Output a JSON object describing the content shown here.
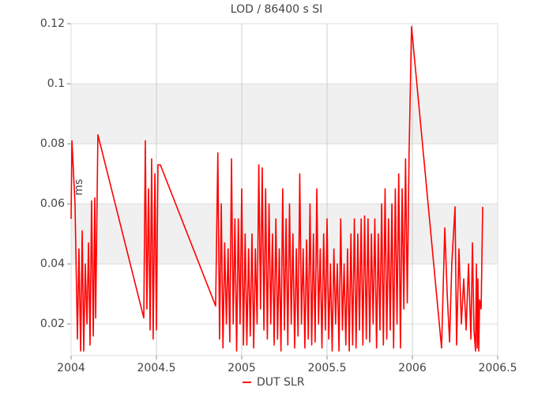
{
  "chart_data": {
    "type": "line",
    "title": "LOD / 86400 s SI",
    "y_label": "ms",
    "xlim": [
      2004,
      2006.5
    ],
    "xticks": [
      2004,
      2004.5,
      2005,
      2005.5,
      2006,
      2006.5
    ],
    "ylim": [
      0.0095,
      0.12
    ],
    "yticks": [
      0.02,
      0.04,
      0.06,
      0.08,
      0.1,
      0.12
    ],
    "grid": true,
    "legend": "bottom",
    "x": [
      2004.0,
      2004.005,
      2004.023,
      2004.037,
      2004.046,
      2004.056,
      2004.065,
      2004.074,
      2004.083,
      2004.093,
      2004.102,
      2004.111,
      2004.12,
      2004.13,
      2004.139,
      2004.144,
      2004.157,
      2004.426,
      2004.435,
      2004.444,
      2004.454,
      2004.463,
      2004.472,
      2004.481,
      2004.491,
      2004.5,
      2004.509,
      2004.523,
      2004.847,
      2004.86,
      2004.87,
      2004.88,
      2004.89,
      2004.9,
      2004.91,
      2004.92,
      2004.93,
      2004.94,
      2004.95,
      2004.96,
      2004.97,
      2004.98,
      2004.99,
      2005.0,
      2005.01,
      2005.02,
      2005.03,
      2005.04,
      2005.05,
      2005.06,
      2005.07,
      2005.08,
      2005.09,
      2005.1,
      2005.11,
      2005.12,
      2005.13,
      2005.14,
      2005.15,
      2005.16,
      2005.17,
      2005.18,
      2005.19,
      2005.2,
      2005.21,
      2005.22,
      2005.23,
      2005.24,
      2005.25,
      2005.26,
      2005.27,
      2005.28,
      2005.29,
      2005.3,
      2005.31,
      2005.32,
      2005.33,
      2005.34,
      2005.35,
      2005.36,
      2005.37,
      2005.38,
      2005.39,
      2005.4,
      2005.41,
      2005.42,
      2005.43,
      2005.44,
      2005.45,
      2005.46,
      2005.47,
      2005.48,
      2005.49,
      2005.5,
      2005.51,
      2005.52,
      2005.53,
      2005.54,
      2005.55,
      2005.56,
      2005.57,
      2005.58,
      2005.59,
      2005.6,
      2005.61,
      2005.62,
      2005.63,
      2005.64,
      2005.65,
      2005.66,
      2005.67,
      2005.68,
      2005.69,
      2005.7,
      2005.71,
      2005.72,
      2005.73,
      2005.74,
      2005.75,
      2005.76,
      2005.77,
      2005.78,
      2005.79,
      2005.8,
      2005.81,
      2005.82,
      2005.83,
      2005.84,
      2005.85,
      2005.86,
      2005.87,
      2005.88,
      2005.89,
      2005.9,
      2005.91,
      2005.92,
      2005.93,
      2005.94,
      2005.95,
      2005.96,
      2005.97,
      2005.981,
      2005.995,
      2006.171,
      2006.19,
      2006.204,
      2006.218,
      2006.231,
      2006.25,
      2006.259,
      2006.273,
      2006.287,
      2006.301,
      2006.315,
      2006.329,
      2006.343,
      2006.352,
      2006.361,
      2006.37,
      2006.375,
      2006.38,
      2006.384,
      2006.389,
      2006.394,
      2006.403,
      2006.412
    ],
    "series": [
      {
        "name": "DUT SLR",
        "color": "#ff0000",
        "values": [
          0.055,
          0.081,
          0.06,
          0.015,
          0.045,
          0.011,
          0.051,
          0.011,
          0.04,
          0.02,
          0.047,
          0.013,
          0.061,
          0.016,
          0.062,
          0.022,
          0.083,
          0.022,
          0.081,
          0.025,
          0.065,
          0.018,
          0.075,
          0.015,
          0.07,
          0.018,
          0.073,
          0.073,
          0.026,
          0.077,
          0.015,
          0.06,
          0.012,
          0.047,
          0.02,
          0.045,
          0.014,
          0.075,
          0.02,
          0.055,
          0.011,
          0.055,
          0.02,
          0.065,
          0.013,
          0.05,
          0.013,
          0.045,
          0.016,
          0.05,
          0.012,
          0.045,
          0.02,
          0.073,
          0.025,
          0.072,
          0.018,
          0.065,
          0.015,
          0.06,
          0.02,
          0.05,
          0.013,
          0.055,
          0.015,
          0.045,
          0.011,
          0.065,
          0.018,
          0.055,
          0.013,
          0.06,
          0.02,
          0.05,
          0.012,
          0.045,
          0.016,
          0.07,
          0.02,
          0.045,
          0.012,
          0.048,
          0.015,
          0.06,
          0.013,
          0.05,
          0.014,
          0.065,
          0.02,
          0.045,
          0.012,
          0.05,
          0.018,
          0.055,
          0.015,
          0.04,
          0.011,
          0.045,
          0.02,
          0.04,
          0.011,
          0.055,
          0.018,
          0.04,
          0.013,
          0.045,
          0.011,
          0.05,
          0.013,
          0.055,
          0.012,
          0.05,
          0.018,
          0.055,
          0.013,
          0.056,
          0.015,
          0.055,
          0.014,
          0.05,
          0.02,
          0.055,
          0.012,
          0.05,
          0.018,
          0.06,
          0.013,
          0.065,
          0.015,
          0.055,
          0.018,
          0.06,
          0.012,
          0.065,
          0.02,
          0.07,
          0.012,
          0.065,
          0.025,
          0.075,
          0.027,
          0.078,
          0.119,
          0.012,
          0.052,
          0.03,
          0.014,
          0.04,
          0.059,
          0.013,
          0.045,
          0.02,
          0.035,
          0.018,
          0.04,
          0.015,
          0.047,
          0.018,
          0.011,
          0.04,
          0.012,
          0.035,
          0.011,
          0.028,
          0.025,
          0.059
        ]
      }
    ]
  }
}
